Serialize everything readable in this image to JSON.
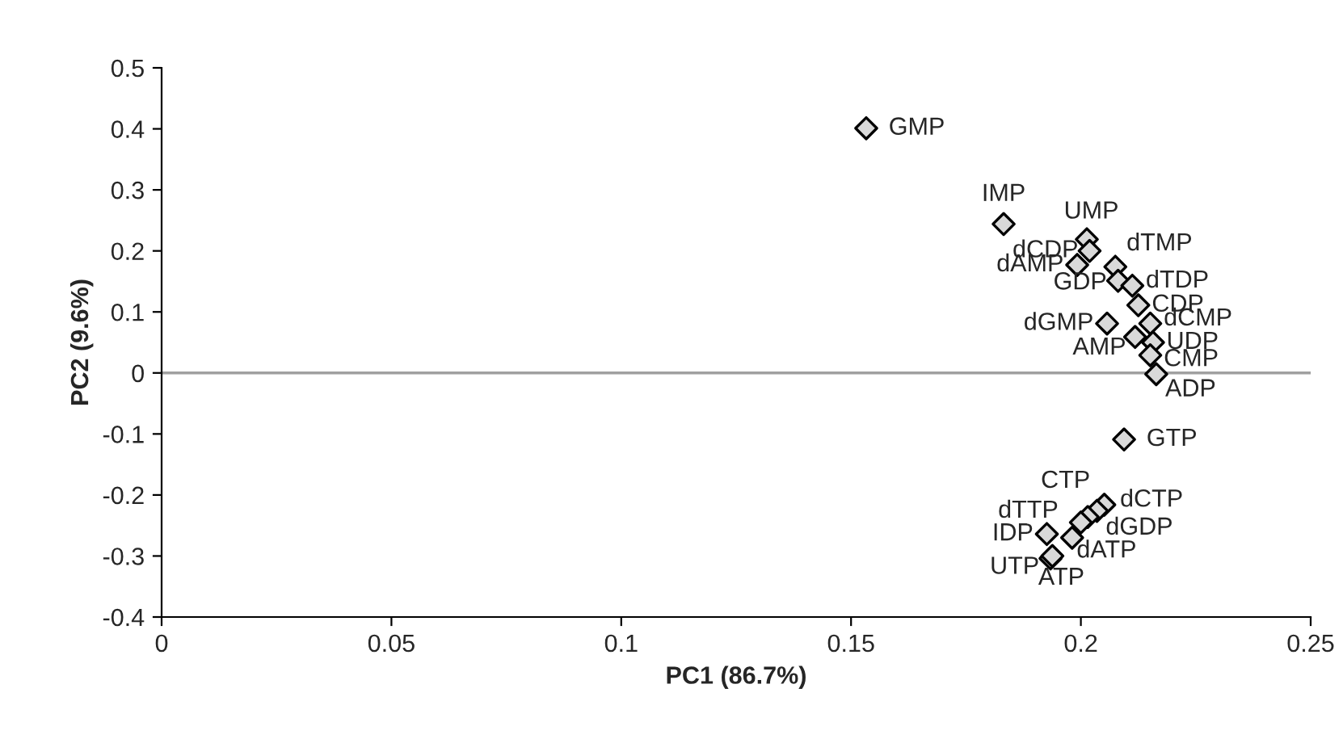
{
  "chart_data": {
    "type": "scatter",
    "xlabel": "PC1 (86.7%)",
    "ylabel": "PC2 (9.6%)",
    "xlim": [
      0,
      0.25
    ],
    "xticks": [
      0,
      0.05,
      0.1,
      0.15,
      0.2,
      0.25
    ],
    "ylim": [
      -0.4,
      0.5
    ],
    "yticks": [
      -0.4,
      -0.3,
      -0.2,
      -0.1,
      0,
      0.1,
      0.2,
      0.3,
      0.4,
      0.5
    ],
    "grid": false,
    "marker": "diamond",
    "ref_lines": [
      {
        "axis": "y",
        "value": 0,
        "color": "#a0a0a0"
      }
    ],
    "series": [
      {
        "color": "#d9d9d9",
        "x": [
          0.1533,
          0.1832,
          0.2013,
          0.2019,
          0.1992,
          0.2075,
          0.2081,
          0.2112,
          0.2125,
          0.2057,
          0.2151,
          0.2118,
          0.2157,
          0.2151,
          0.2164,
          0.2094,
          0.2051,
          0.2035,
          0.2015,
          0.2,
          0.1981,
          0.1926,
          0.1934,
          0.1938
        ],
        "values": [
          0.401,
          0.244,
          0.219,
          0.2,
          0.177,
          0.174,
          0.151,
          0.143,
          0.111,
          0.081,
          0.081,
          0.059,
          0.05,
          0.029,
          -0.002,
          -0.109,
          -0.216,
          -0.226,
          -0.236,
          -0.245,
          -0.27,
          -0.264,
          -0.304,
          -0.3
        ],
        "value_labels": [
          "GMP",
          "IMP",
          "UMP",
          "dCDP",
          "dAMP",
          "dTMP",
          "GDP",
          "dTDP",
          "CDP",
          "dGMP",
          "dCMP",
          "AMP",
          "UDP",
          "CMP",
          "ADP",
          "GTP",
          "dCTP",
          "CTP",
          "dGDP",
          "dTTP",
          "dATP",
          "IDP",
          "UTP",
          "ATP"
        ]
      }
    ]
  }
}
